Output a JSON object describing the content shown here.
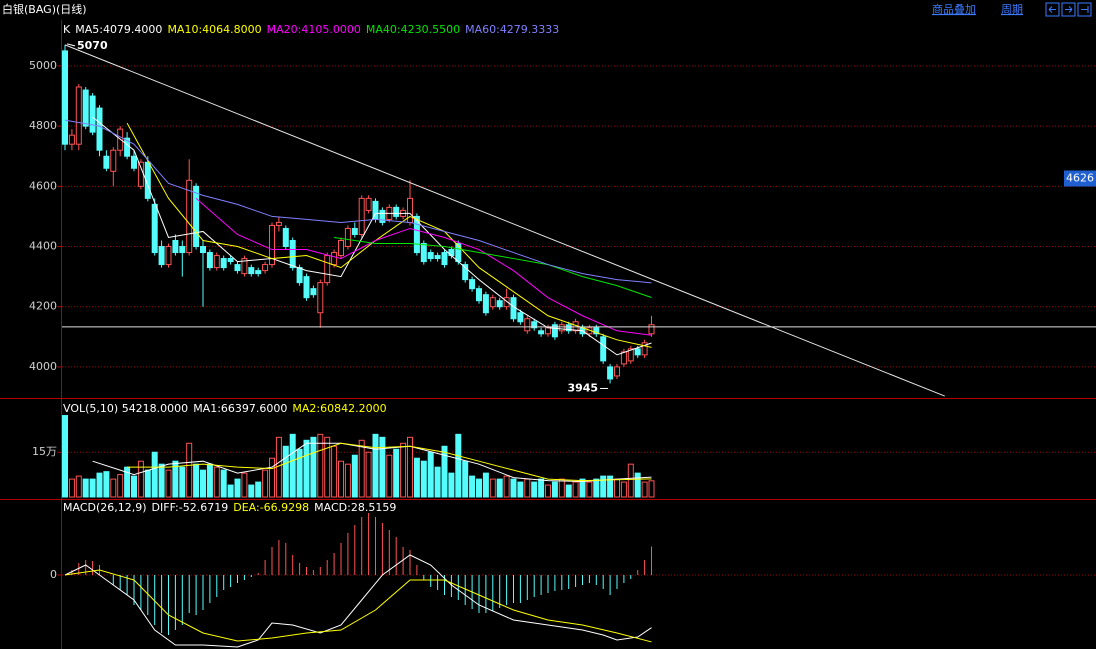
{
  "toolbar": {
    "title": "白银(BAG)(日线)",
    "buttons": [
      "商品叠加",
      "周期"
    ]
  },
  "chart_data": [
    {
      "type": "candlestick",
      "label": "K",
      "open": [
        5050,
        4740,
        4740,
        4920,
        4900,
        4860,
        4700,
        4650,
        4720,
        4760,
        4700,
        4600,
        4680,
        4540,
        4400,
        4340,
        4420,
        4400,
        4380,
        4600,
        4400,
        4380,
        4330,
        4360,
        4360,
        4340,
        4310,
        4330,
        4320,
        4320,
        4340,
        4470,
        4460,
        4420,
        4330,
        4300,
        4260,
        4180,
        4280,
        4340,
        4370,
        4400,
        4460,
        4440,
        4520,
        4550,
        4520,
        4490,
        4530,
        4500,
        4480,
        4500,
        4410,
        4380,
        4370,
        4380,
        4390,
        4410,
        4340,
        4290,
        4260,
        4240,
        4200,
        4220,
        4200,
        4230,
        4180,
        4120,
        4150,
        4120,
        4110,
        4140,
        4120,
        4140,
        4120,
        4130,
        4110,
        4130,
        4100,
        4000,
        3970,
        4010,
        4020,
        4060,
        4040,
        4110
      ],
      "high": [
        5070,
        4790,
        4940,
        4930,
        4910,
        4870,
        4720,
        4730,
        4800,
        4780,
        4720,
        4690,
        4700,
        4560,
        4420,
        4410,
        4440,
        4420,
        4690,
        4610,
        4420,
        4390,
        4380,
        4370,
        4370,
        4350,
        4370,
        4340,
        4330,
        4350,
        4480,
        4500,
        4470,
        4430,
        4340,
        4310,
        4270,
        4290,
        4380,
        4390,
        4430,
        4470,
        4480,
        4570,
        4570,
        4560,
        4530,
        4540,
        4540,
        4530,
        4620,
        4510,
        4420,
        4390,
        4380,
        4390,
        4400,
        4420,
        4350,
        4300,
        4270,
        4250,
        4240,
        4230,
        4260,
        4240,
        4190,
        4170,
        4160,
        4130,
        4140,
        4150,
        4150,
        4150,
        4160,
        4140,
        4140,
        4140,
        4110,
        4010,
        4010,
        4060,
        4070,
        4070,
        4090,
        4170
      ],
      "low": [
        4720,
        4720,
        4720,
        4790,
        4770,
        4700,
        4650,
        4600,
        4700,
        4690,
        4650,
        4590,
        4550,
        4370,
        4330,
        4330,
        4370,
        4300,
        4370,
        4390,
        4200,
        4320,
        4320,
        4320,
        4340,
        4310,
        4300,
        4300,
        4300,
        4310,
        4330,
        4450,
        4390,
        4320,
        4270,
        4220,
        4230,
        4130,
        4270,
        4330,
        4360,
        4390,
        4430,
        4430,
        4510,
        4480,
        4470,
        4480,
        4490,
        4490,
        4470,
        4370,
        4340,
        4350,
        4350,
        4330,
        4360,
        4340,
        4280,
        4250,
        4210,
        4170,
        4190,
        4190,
        4190,
        4150,
        4140,
        4110,
        4120,
        4100,
        4100,
        4090,
        4110,
        4110,
        4110,
        4100,
        4100,
        4100,
        4010,
        3945,
        3960,
        4000,
        4010,
        4030,
        4030,
        4100
      ],
      "close": [
        4740,
        4770,
        4930,
        4800,
        4780,
        4720,
        4660,
        4720,
        4790,
        4700,
        4660,
        4680,
        4560,
        4380,
        4340,
        4400,
        4380,
        4380,
        4620,
        4400,
        4380,
        4330,
        4370,
        4330,
        4350,
        4320,
        4360,
        4310,
        4310,
        4340,
        4470,
        4480,
        4400,
        4330,
        4280,
        4230,
        4240,
        4280,
        4370,
        4380,
        4420,
        4460,
        4440,
        4560,
        4560,
        4490,
        4480,
        4530,
        4500,
        4520,
        4560,
        4380,
        4350,
        4360,
        4360,
        4340,
        4370,
        4350,
        4290,
        4260,
        4220,
        4180,
        4230,
        4200,
        4230,
        4160,
        4150,
        4160,
        4130,
        4110,
        4130,
        4100,
        4140,
        4120,
        4150,
        4110,
        4130,
        4110,
        4020,
        3960,
        4000,
        4050,
        4060,
        4040,
        4080,
        4140
      ],
      "up_color": "#ff5454",
      "down_color": "#54fcfc",
      "series": [
        {
          "name": "MA5:4079.4000",
          "color": "#ffffff",
          "x": [
            4,
            10,
            15,
            20,
            25,
            30,
            35,
            40,
            45,
            50,
            55,
            60,
            65,
            70,
            75,
            80,
            85
          ],
          "values": [
            4830,
            4720,
            4430,
            4450,
            4350,
            4360,
            4320,
            4300,
            4510,
            4510,
            4390,
            4290,
            4200,
            4130,
            4120,
            4040,
            4079.4
          ]
        },
        {
          "name": "MA10:4064.8000",
          "color": "#ffff00",
          "x": [
            9,
            15,
            20,
            25,
            30,
            35,
            40,
            45,
            50,
            55,
            60,
            65,
            70,
            75,
            80,
            85
          ],
          "values": [
            4810,
            4560,
            4420,
            4400,
            4360,
            4370,
            4330,
            4420,
            4500,
            4450,
            4330,
            4250,
            4170,
            4130,
            4090,
            4064.8
          ]
        },
        {
          "name": "MA20:4105.0000",
          "color": "#ff00ff",
          "x": [
            19,
            25,
            30,
            35,
            40,
            45,
            50,
            55,
            60,
            65,
            70,
            75,
            80,
            85
          ],
          "values": [
            4560,
            4440,
            4390,
            4390,
            4360,
            4420,
            4460,
            4430,
            4390,
            4320,
            4230,
            4170,
            4120,
            4105
          ]
        },
        {
          "name": "MA40:4230.5500",
          "color": "#00e600",
          "x": [
            39,
            45,
            50,
            55,
            60,
            65,
            70,
            75,
            80,
            85
          ],
          "values": [
            4430,
            4410,
            4410,
            4400,
            4380,
            4360,
            4340,
            4300,
            4270,
            4230.55
          ]
        },
        {
          "name": "MA60:4279.3333",
          "color": "#8080ff",
          "x": [
            0,
            5,
            10,
            15,
            20,
            25,
            30,
            35,
            40,
            45,
            50,
            55,
            60,
            65,
            70,
            75,
            80,
            85
          ],
          "values": [
            4820,
            4800,
            4740,
            4610,
            4570,
            4540,
            4500,
            4490,
            4480,
            4490,
            4480,
            4450,
            4420,
            4380,
            4340,
            4310,
            4290,
            4279.3333
          ]
        }
      ],
      "trendline": {
        "x": [
          0,
          127.5
        ],
        "values": [
          5070,
          3903
        ]
      },
      "hline": 4133,
      "price_tag": 4626,
      "annotations": [
        {
          "x": 0,
          "value": 5070
        },
        {
          "x": 79,
          "value": 3945
        }
      ],
      "ylim": [
        3900,
        5146
      ],
      "yticks": [
        4000,
        4200,
        4400,
        4600,
        4800,
        5000
      ],
      "grid": true
    },
    {
      "type": "bar",
      "label": "VOL(5,10) 54218.0000",
      "values": [
        273000,
        60000,
        70000,
        60000,
        60000,
        80000,
        85000,
        60000,
        75000,
        100000,
        70000,
        120000,
        90000,
        150000,
        110000,
        90000,
        120000,
        100000,
        180000,
        110000,
        90000,
        110000,
        100000,
        90000,
        40000,
        60000,
        80000,
        40000,
        50000,
        90000,
        130000,
        200000,
        170000,
        210000,
        160000,
        190000,
        200000,
        210000,
        200000,
        170000,
        120000,
        110000,
        140000,
        190000,
        150000,
        210000,
        200000,
        140000,
        160000,
        180000,
        200000,
        130000,
        120000,
        150000,
        100000,
        170000,
        80000,
        210000,
        120000,
        70000,
        60000,
        80000,
        60000,
        60000,
        70000,
        60000,
        50000,
        60000,
        50000,
        60000,
        40000,
        50000,
        60000,
        40000,
        50000,
        60000,
        50000,
        60000,
        70000,
        70000,
        60000,
        50000,
        110000,
        80000,
        50000,
        54218
      ],
      "series": [
        {
          "name": "MA1:66397.6000",
          "color": "#ffffff",
          "x": [
            4,
            10,
            15,
            20,
            25,
            30,
            35,
            40,
            45,
            50,
            55,
            60,
            65,
            70,
            75,
            80,
            85
          ],
          "values": [
            120000,
            75000,
            110000,
            120000,
            80000,
            100000,
            180000,
            180000,
            160000,
            170000,
            140000,
            110000,
            65000,
            55000,
            52000,
            60000,
            66397.6
          ]
        },
        {
          "name": "MA2:60842.2000",
          "color": "#ffff00",
          "x": [
            9,
            15,
            20,
            25,
            30,
            35,
            40,
            45,
            50,
            55,
            60,
            65,
            70,
            75,
            80,
            85
          ],
          "values": [
            100000,
            100000,
            110000,
            100000,
            95000,
            140000,
            180000,
            165000,
            170000,
            150000,
            120000,
            90000,
            60000,
            55000,
            58000,
            60842.2
          ]
        }
      ],
      "ylim": [
        0,
        315000
      ],
      "yticks": [
        {
          "value": 150000,
          "label": "15万"
        }
      ],
      "grid": true
    },
    {
      "type": "macd",
      "label": "MACD(26,12,9)",
      "macd_label": "MACD:28.5159",
      "values": [
        0,
        5,
        12,
        15,
        14,
        10,
        0,
        -10,
        -15,
        -20,
        -30,
        -35,
        -40,
        -50,
        -58,
        -60,
        -55,
        -50,
        -38,
        -40,
        -35,
        -28,
        -22,
        -15,
        -12,
        -8,
        -5,
        -2,
        2,
        15,
        28,
        35,
        32,
        20,
        12,
        8,
        5,
        8,
        15,
        22,
        32,
        42,
        50,
        58,
        62,
        58,
        52,
        45,
        38,
        28,
        25,
        10,
        -5,
        -12,
        -15,
        -20,
        -22,
        -25,
        -30,
        -34,
        -38,
        -38,
        -36,
        -33,
        -30,
        -28,
        -28,
        -25,
        -22,
        -20,
        -18,
        -16,
        -15,
        -14,
        -12,
        -10,
        -8,
        -10,
        -14,
        -20,
        -14,
        -8,
        -4,
        5,
        15,
        28.5159
      ],
      "up_color": "#ff5454",
      "down_color": "#54fcfc",
      "series": [
        {
          "name": "DIFF:-52.6719",
          "color": "#ffffff",
          "x": [
            0,
            3,
            6,
            10,
            13,
            16,
            20,
            25,
            28,
            30,
            33,
            37,
            40,
            43,
            46,
            50,
            53,
            56,
            60,
            65,
            70,
            75,
            78,
            80,
            83,
            85
          ],
          "values": [
            0,
            10,
            -5,
            -25,
            -55,
            -70,
            -70,
            -72,
            -65,
            -48,
            -50,
            -58,
            -50,
            -25,
            0,
            20,
            10,
            -10,
            -30,
            -45,
            -50,
            -55,
            -60,
            -65,
            -62,
            -52.6719
          ]
        },
        {
          "name": "DEA:-66.9298",
          "color": "#ffff00",
          "x": [
            0,
            5,
            10,
            15,
            20,
            25,
            30,
            35,
            40,
            45,
            50,
            55,
            60,
            65,
            70,
            75,
            80,
            85
          ],
          "values": [
            0,
            5,
            -5,
            -40,
            -58,
            -66,
            -63,
            -58,
            -55,
            -35,
            -5,
            -5,
            -20,
            -35,
            -45,
            -50,
            -58,
            -66.9298
          ]
        }
      ],
      "ylim": [
        -74,
        73
      ],
      "yticks": [
        0
      ],
      "grid": true
    }
  ]
}
